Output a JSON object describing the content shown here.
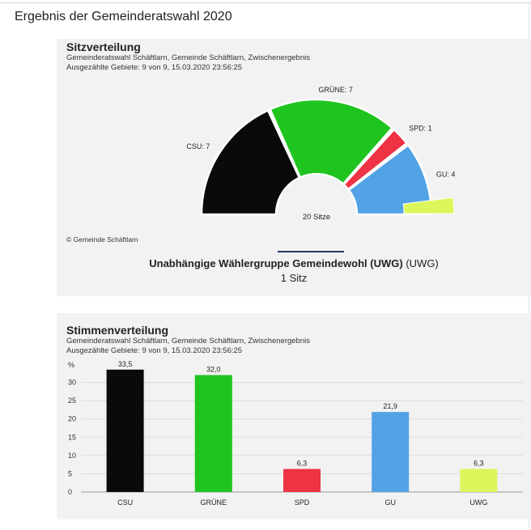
{
  "page_title": "Ergebnis der Gemeinderatswahl 2020",
  "seat_panel": {
    "title": "Sitzverteilung",
    "subtitle1": "Gemeinderatswahl Schäftlarn, Gemeinde Schäftlarn, Zwischenergebnis",
    "subtitle2": "Ausgezählte Gebiete: 9 von 9, 15.03.2020 23:56:25",
    "copyright": "© Gemeinde Schäftlarn",
    "center_label": "20 Sitze",
    "selected_party_name": "Unabhängige Wählergruppe Gemeindewohl (UWG)",
    "selected_party_abbr": "(UWG)",
    "selected_party_seats": "1 Sitz"
  },
  "vote_panel": {
    "title": "Stimmenverteilung",
    "subtitle1": "Gemeinderatswahl Schäftlarn, Gemeinde Schäftlarn, Zwischenergebnis",
    "subtitle2": "Ausgezählte Gebiete: 9 von 9, 15.03.2020 23:56:25"
  },
  "colors": {
    "CSU": "#0a0a0a",
    "GRÜNE": "#1fc41f",
    "SPD": "#ee3344",
    "GU": "#52a3e6",
    "UWG": "#dbf75c"
  },
  "chart_data": [
    {
      "type": "pie",
      "variant": "parliament-half-donut",
      "title": "Sitzverteilung",
      "total_label": "20 Sitze",
      "categories": [
        "CSU",
        "GRÜNE",
        "SPD",
        "GU",
        "UWG"
      ],
      "values": [
        7,
        7,
        1,
        4,
        1
      ],
      "labels": [
        "CSU: 7",
        "GRÜNE: 7",
        "SPD: 1",
        "GU: 4",
        ""
      ],
      "selected": "UWG"
    },
    {
      "type": "bar",
      "title": "Stimmenverteilung",
      "categories": [
        "CSU",
        "GRÜNE",
        "SPD",
        "GU",
        "UWG"
      ],
      "values": [
        33.5,
        32.0,
        6.3,
        21.9,
        6.3
      ],
      "value_labels": [
        "33,5",
        "32,0",
        "6,3",
        "21,9",
        "6,3"
      ],
      "ylabel": "%",
      "ylim": [
        0,
        35
      ],
      "yticks": [
        0,
        5,
        10,
        15,
        20,
        25,
        30
      ],
      "grid": true
    }
  ]
}
